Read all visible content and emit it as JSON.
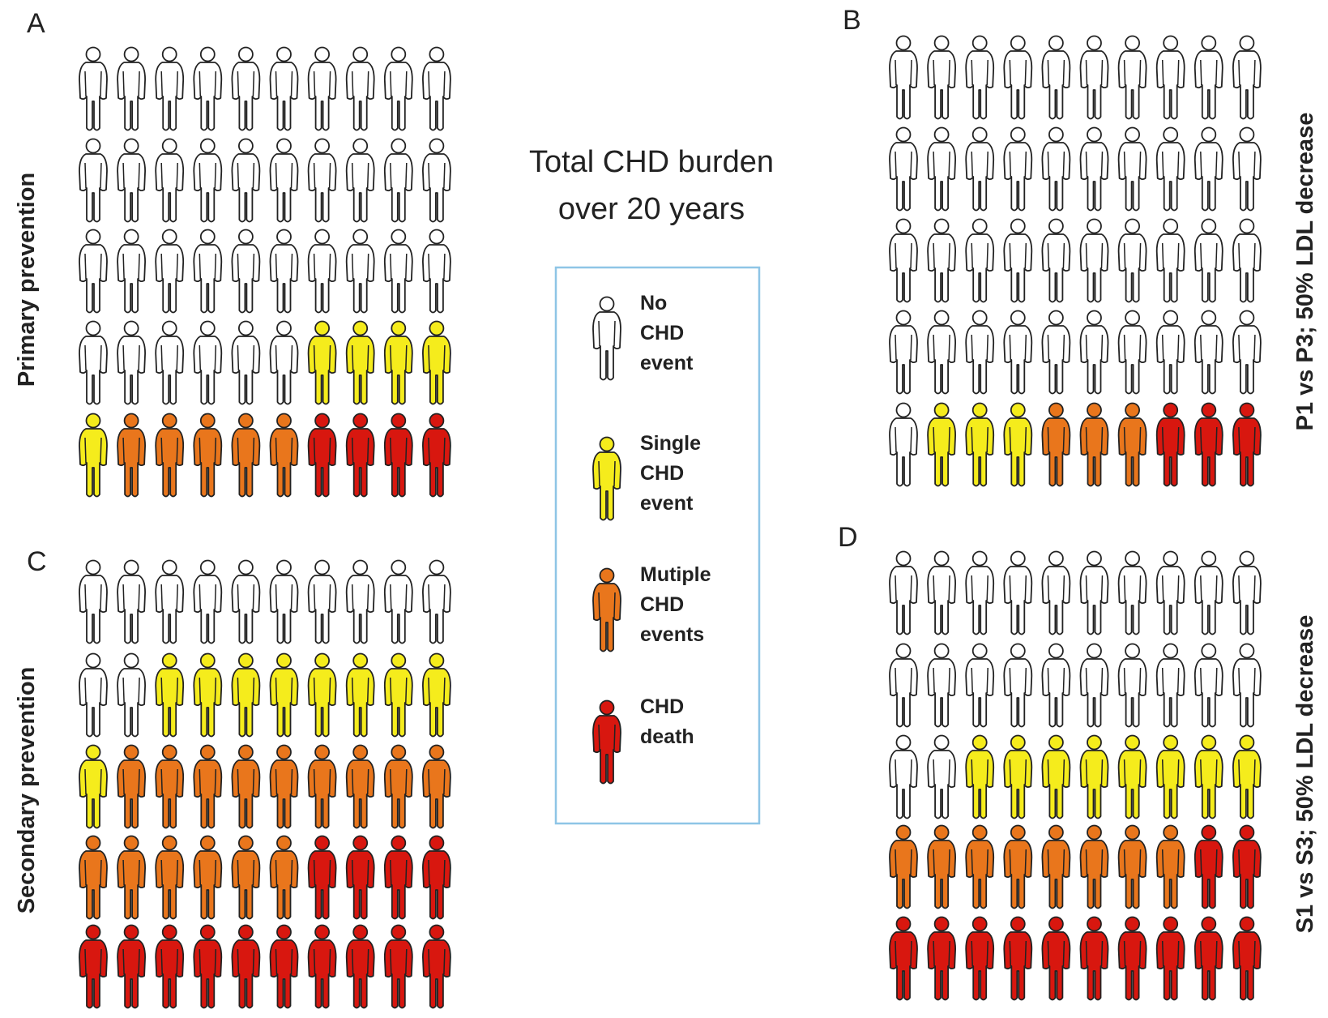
{
  "title": [
    "Total CHD burden",
    "over 20 years"
  ],
  "legend": [
    {
      "name": [
        "No",
        "CHD",
        "event"
      ],
      "color": "#ffffff"
    },
    {
      "name": [
        "Single",
        "CHD",
        "event"
      ],
      "color": "#f5ec1c"
    },
    {
      "name": [
        "Mutiple",
        "CHD",
        "events"
      ],
      "color": "#e9761c"
    },
    {
      "name": [
        "CHD",
        "death"
      ],
      "color": "#d8170f"
    }
  ],
  "chart_data": [
    {
      "type": "pictograph",
      "panel": "A",
      "label": "Primary prevention",
      "values": [
        36,
        5,
        5,
        4
      ]
    },
    {
      "type": "pictograph",
      "panel": "B",
      "label": "P1 vs P3; 50% LDL decrease",
      "values": [
        41,
        3,
        3,
        3
      ]
    },
    {
      "type": "pictograph",
      "panel": "C",
      "label": "Secondary prevention",
      "values": [
        12,
        9,
        15,
        14
      ]
    },
    {
      "type": "pictograph",
      "panel": "D",
      "label": "S1 vs S3; 50% LDL decrease",
      "values": [
        22,
        8,
        8,
        12
      ]
    }
  ]
}
